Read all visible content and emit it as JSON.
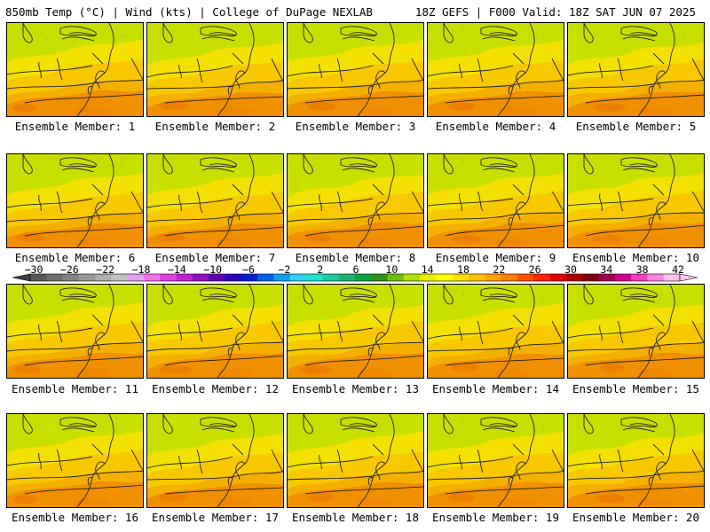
{
  "header": {
    "left_title": "850mb Temp (°C) | Wind (kts) | College of DuPage NEXLAB",
    "right_title": "18Z GEFS | F000 Valid: 18Z SAT JUN 07 2025"
  },
  "members": [
    {
      "label": "Ensemble Member: 1"
    },
    {
      "label": "Ensemble Member: 2"
    },
    {
      "label": "Ensemble Member: 3"
    },
    {
      "label": "Ensemble Member: 4"
    },
    {
      "label": "Ensemble Member: 5"
    },
    {
      "label": "Ensemble Member: 6"
    },
    {
      "label": "Ensemble Member: 7"
    },
    {
      "label": "Ensemble Member: 8"
    },
    {
      "label": "Ensemble Member: 9"
    },
    {
      "label": "Ensemble Member: 10"
    },
    {
      "label": "Ensemble Member: 11"
    },
    {
      "label": "Ensemble Member: 12"
    },
    {
      "label": "Ensemble Member: 13"
    },
    {
      "label": "Ensemble Member: 14"
    },
    {
      "label": "Ensemble Member: 15"
    },
    {
      "label": "Ensemble Member: 16"
    },
    {
      "label": "Ensemble Member: 17"
    },
    {
      "label": "Ensemble Member: 18"
    },
    {
      "label": "Ensemble Member: 19"
    },
    {
      "label": "Ensemble Member: 20"
    }
  ],
  "colorbar": {
    "labels": [
      "−30",
      "−26",
      "−22",
      "−18",
      "−14",
      "−10",
      "−6",
      "−2",
      "2",
      "6",
      "10",
      "14",
      "18",
      "22",
      "26",
      "30",
      "34",
      "38",
      "42"
    ],
    "colors": [
      "#595959",
      "#6e6e6e",
      "#838383",
      "#989898",
      "#adadad",
      "#c2c2c2",
      "#e0a0f0",
      "#f070f0",
      "#e040e0",
      "#c020d0",
      "#9010c0",
      "#6000b0",
      "#3000c0",
      "#0020d0",
      "#0060e8",
      "#10a0f0",
      "#30d0f0",
      "#20e0d0",
      "#20c8a0",
      "#20b070",
      "#10a040",
      "#309018",
      "#70c010",
      "#b0e000",
      "#e8f000",
      "#ffff00",
      "#ffe000",
      "#ffc000",
      "#ffa000",
      "#ff8000",
      "#ff5000",
      "#ff2000",
      "#e00000",
      "#b00000",
      "#800010",
      "#a00050",
      "#d00090",
      "#f040c0",
      "#ff80e0",
      "#ffc0f0"
    ]
  }
}
